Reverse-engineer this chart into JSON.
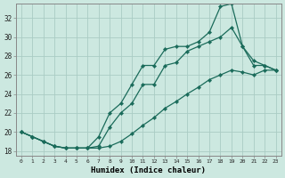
{
  "xlabel": "Humidex (Indice chaleur)",
  "bg_color": "#cce8e0",
  "grid_color": "#aaccC4",
  "line_color": "#1a6b5a",
  "xlim": [
    -0.5,
    23.5
  ],
  "ylim": [
    17.5,
    33.5
  ],
  "xticks": [
    0,
    1,
    2,
    3,
    4,
    5,
    6,
    7,
    8,
    9,
    10,
    11,
    12,
    13,
    14,
    15,
    16,
    17,
    18,
    19,
    20,
    21,
    22,
    23
  ],
  "yticks": [
    18,
    20,
    22,
    24,
    26,
    28,
    30,
    32
  ],
  "line1_x": [
    0,
    1,
    2,
    3,
    4,
    5,
    6,
    7,
    8,
    9,
    10,
    11,
    12,
    13,
    14,
    15,
    16,
    17,
    18,
    19,
    20,
    21,
    22,
    23
  ],
  "line1_y": [
    20,
    19.5,
    19,
    18.5,
    18.3,
    18.3,
    18.3,
    18.5,
    20.5,
    22,
    23,
    25,
    25,
    27,
    27.3,
    28.5,
    29,
    29.5,
    30,
    31,
    29,
    27.5,
    27,
    26.5
  ],
  "line2_x": [
    0,
    1,
    2,
    3,
    4,
    5,
    6,
    7,
    8,
    9,
    10,
    11,
    12,
    13,
    14,
    15,
    16,
    17,
    18,
    19,
    20,
    21,
    22,
    23
  ],
  "line2_y": [
    20,
    19.5,
    19,
    18.5,
    18.3,
    18.3,
    18.3,
    19.5,
    22,
    23,
    25,
    27,
    27,
    28.7,
    29,
    29,
    29.5,
    30.5,
    33.2,
    33.5,
    29,
    27,
    27,
    26.5
  ],
  "line3_x": [
    0,
    1,
    2,
    3,
    4,
    5,
    6,
    7,
    8,
    9,
    10,
    11,
    12,
    13,
    14,
    15,
    16,
    17,
    18,
    19,
    20,
    21,
    22,
    23
  ],
  "line3_y": [
    20,
    19.5,
    19,
    18.5,
    18.3,
    18.3,
    18.3,
    18.3,
    18.5,
    19.0,
    19.8,
    20.7,
    21.5,
    22.5,
    23.2,
    24.0,
    24.7,
    25.5,
    26.0,
    26.5,
    26.3,
    26.0,
    26.5,
    26.5
  ]
}
